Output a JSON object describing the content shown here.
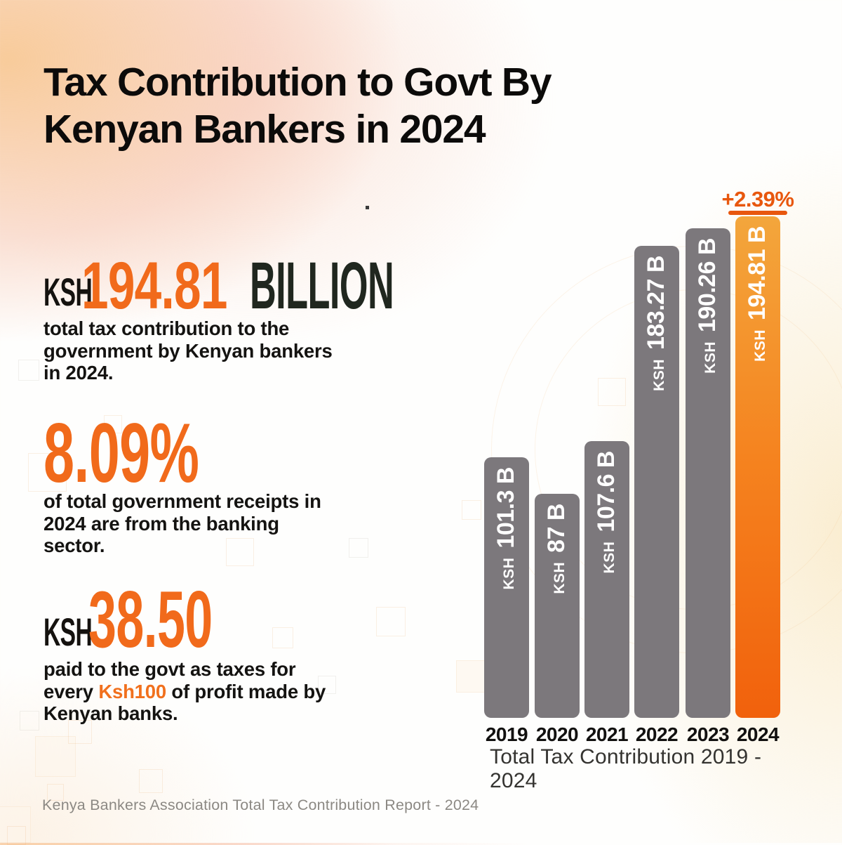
{
  "title": {
    "line1": "Tax Contribution to Govt By",
    "line2": "Kenyan Bankers in 2024"
  },
  "stats": [
    {
      "prefix": "KSH",
      "value": "194.81",
      "suffix": "BILLION",
      "description": "total tax contribution to the government by Kenyan bankers in 2024."
    },
    {
      "value": "8.09%",
      "description": "of total government receipts in 2024 are from the banking sector."
    },
    {
      "prefix": "KSH",
      "value": "38.50",
      "description_pre": "paid to the govt as taxes for every ",
      "highlight": "Ksh100",
      "description_post": " of profit made by Kenyan banks."
    }
  ],
  "chart_data": {
    "type": "bar",
    "title": "Total Tax Contribution 2019 - 2024",
    "categories": [
      "2019",
      "2020",
      "2021",
      "2022",
      "2023",
      "2024"
    ],
    "values": [
      101.3,
      87,
      107.6,
      183.27,
      190.26,
      194.81
    ],
    "ylim": [
      0,
      194.81
    ],
    "grid": false,
    "legend": false,
    "highlight_year": "2024",
    "annotation": {
      "text": "+2.39%",
      "applies_to": "2024"
    },
    "bars": [
      {
        "year": "2019",
        "prefix": "KSH",
        "label": "101.3 B",
        "value": 101.3
      },
      {
        "year": "2020",
        "prefix": "KSH",
        "label": "87 B",
        "value": 87
      },
      {
        "year": "2021",
        "prefix": "KSH",
        "label": "107.6 B",
        "value": 107.6
      },
      {
        "year": "2022",
        "prefix": "KSH",
        "label": "183.27 B",
        "value": 183.27
      },
      {
        "year": "2023",
        "prefix": "KSH",
        "label": "190.26 B",
        "value": 190.26
      },
      {
        "year": "2024",
        "prefix": "KSH",
        "label": "194.81 B",
        "value": 194.81
      }
    ]
  },
  "footer": "Kenya Bankers Association Total Tax Contribution Report - 2024",
  "colors": {
    "accent_orange": "#F16A1B",
    "annotation_orange": "#E8570E",
    "bar_gray": "#7C787C",
    "bar_highlight_top": "#F3A63C",
    "bar_highlight_bottom": "#F1610C",
    "dark_text": "#20271F"
  }
}
